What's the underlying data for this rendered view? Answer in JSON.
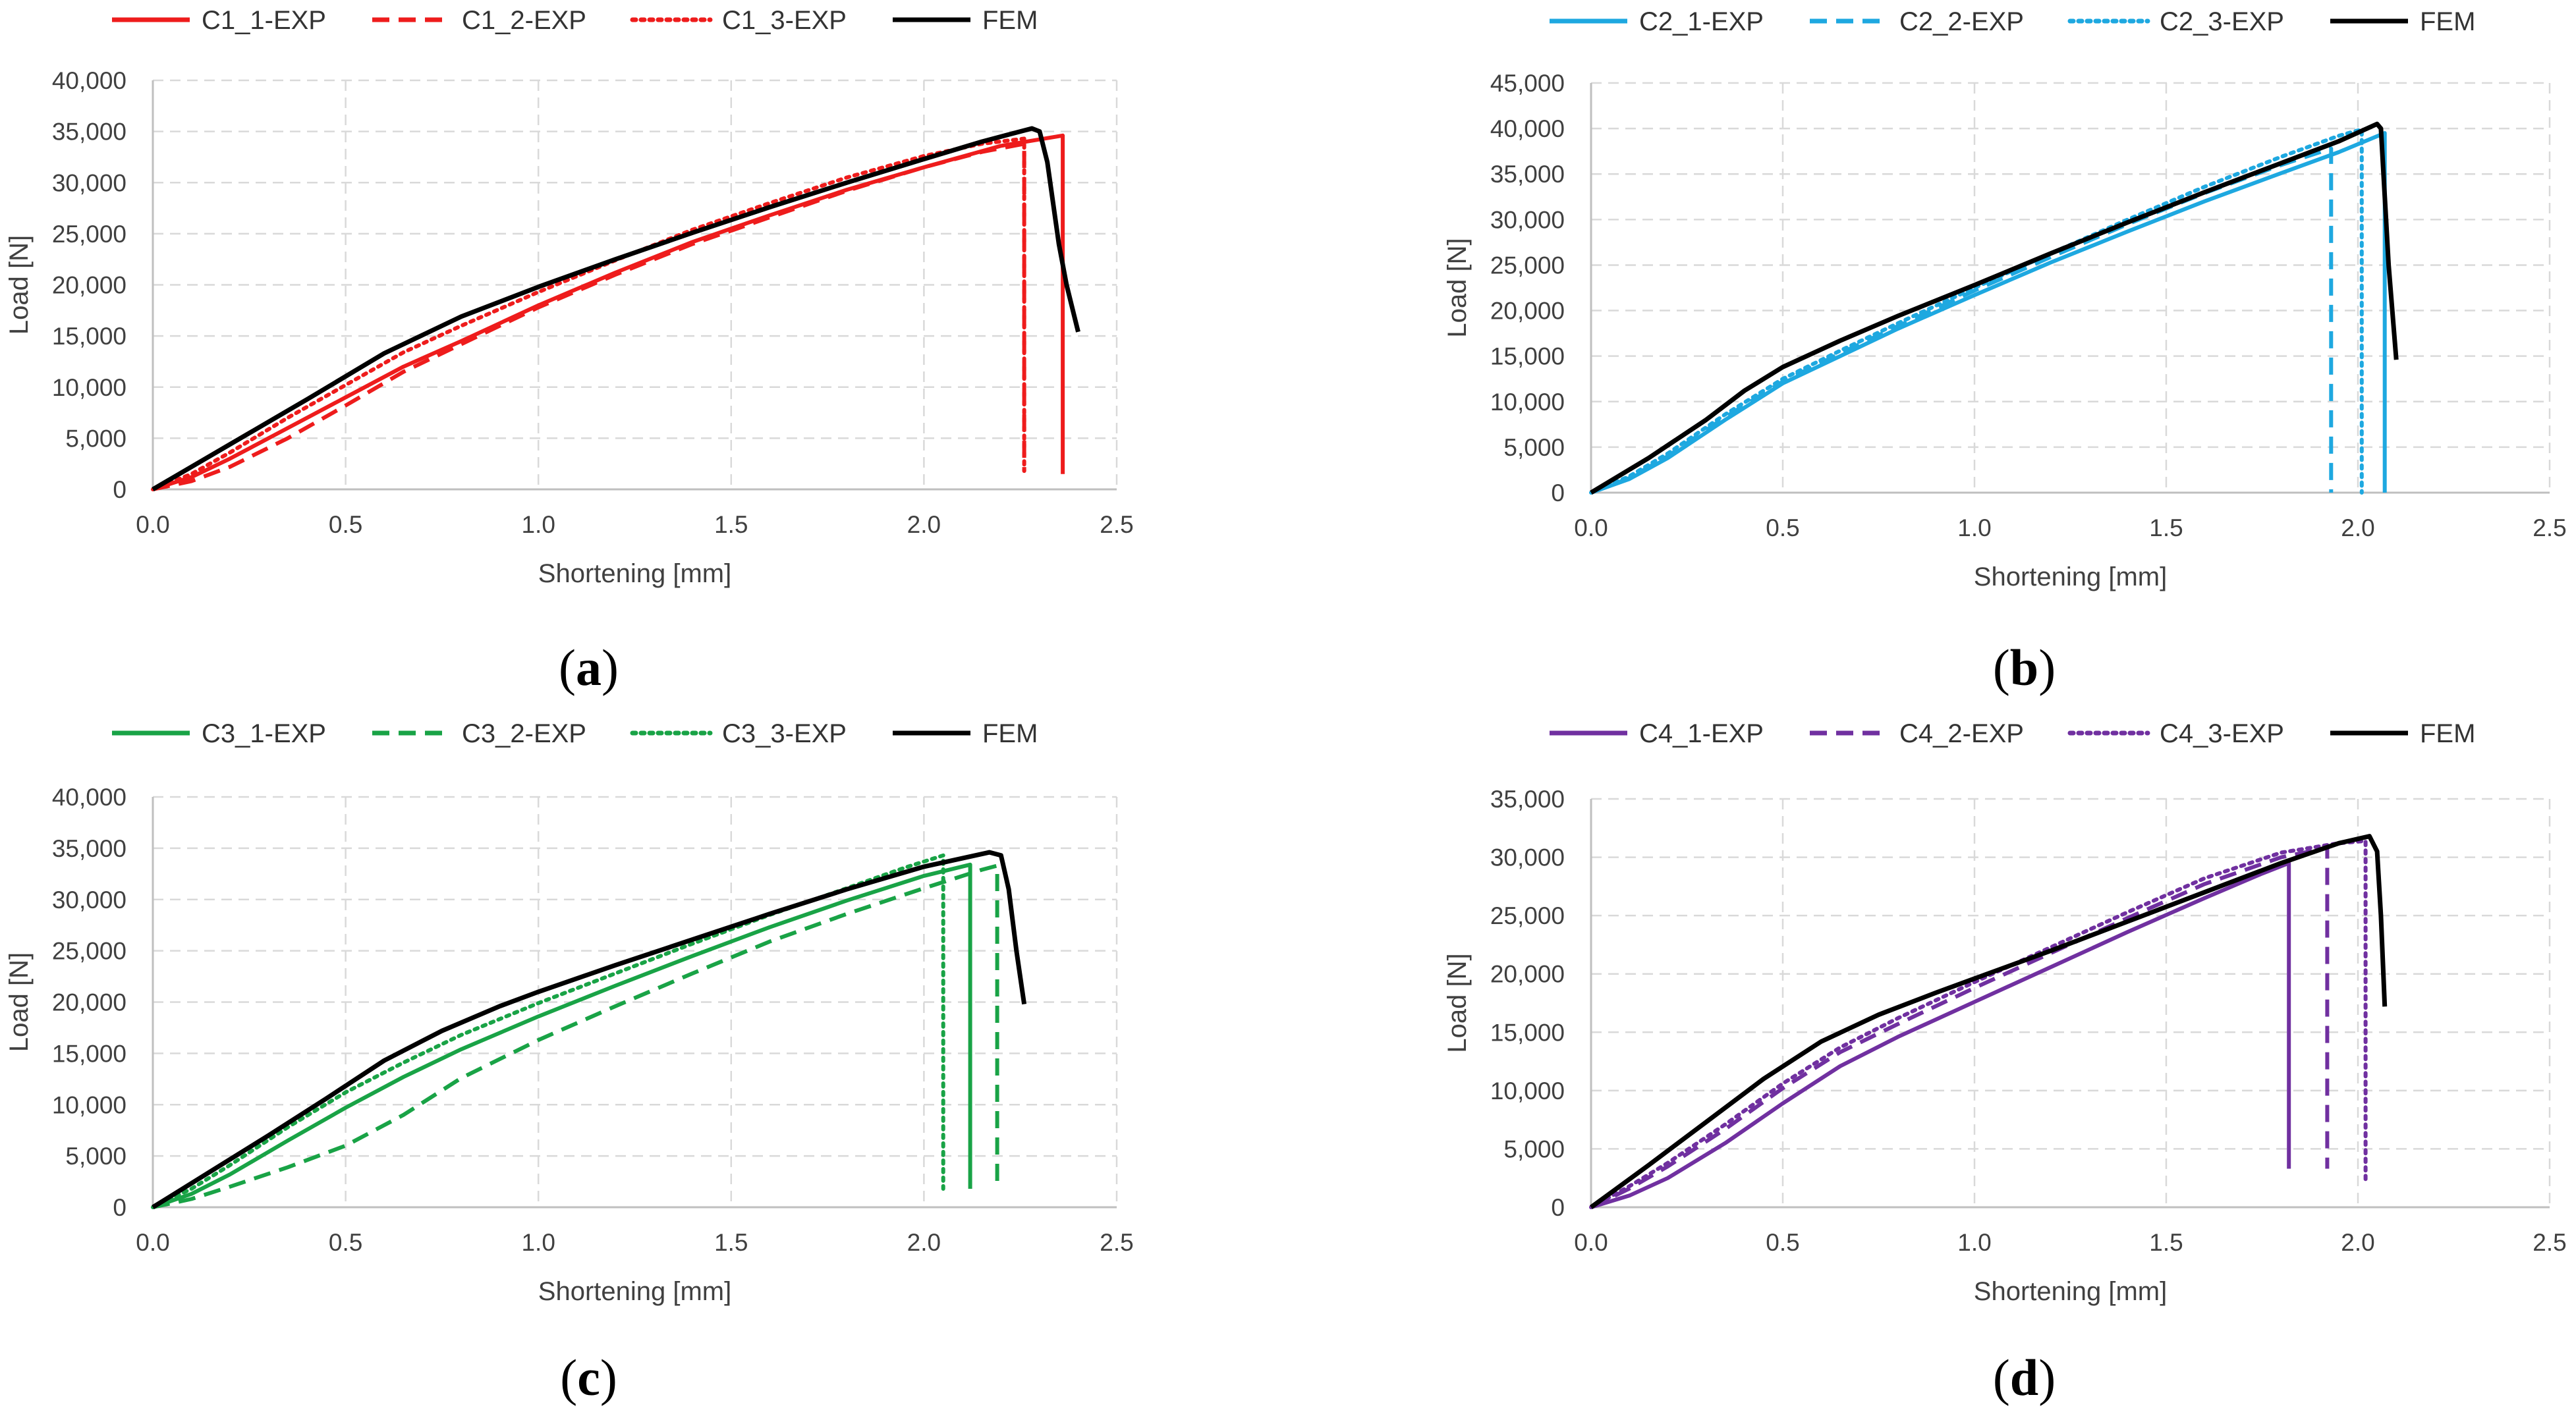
{
  "chart_data": [
    {
      "type": "line",
      "caption": "(a)",
      "caption_letter": "a",
      "xlabel": "Shortening [mm]",
      "ylabel": "Load [N]",
      "xlim": [
        0,
        2.5
      ],
      "ylim": [
        0,
        40000
      ],
      "xticks": [
        0,
        0.5,
        1,
        1.5,
        2,
        2.5
      ],
      "xtick_labels": [
        "0.0",
        "0.5",
        "1.0",
        "1.5",
        "2.0",
        "2.5"
      ],
      "yticks": [
        0,
        5000,
        10000,
        15000,
        20000,
        25000,
        30000,
        35000,
        40000
      ],
      "ytick_labels": [
        "0",
        "5,000",
        "10,000",
        "15,000",
        "20,000",
        "25,000",
        "30,000",
        "35,000",
        "40,000"
      ],
      "grid": true,
      "legend_position": "top",
      "series": [
        {
          "name": "C1_1-EXP",
          "color": "#ee1c1c",
          "dash": "solid",
          "x": [
            0,
            0.1,
            0.2,
            0.35,
            0.5,
            0.65,
            0.8,
            1.0,
            1.2,
            1.4,
            1.6,
            1.8,
            2.0,
            2.2,
            2.36,
            2.36
          ],
          "y": [
            0,
            1200,
            3000,
            6000,
            9000,
            12000,
            14500,
            18000,
            21200,
            24200,
            26800,
            29300,
            31500,
            33600,
            34600,
            1500
          ]
        },
        {
          "name": "C1_2-EXP",
          "color": "#ee1c1c",
          "dash": "dashed",
          "x": [
            0,
            0.1,
            0.2,
            0.35,
            0.5,
            0.65,
            0.8,
            1.0,
            1.2,
            1.4,
            1.6,
            1.8,
            2.0,
            2.15,
            2.26,
            2.26
          ],
          "y": [
            0,
            800,
            2200,
            5000,
            8200,
            11500,
            14200,
            17800,
            21000,
            24000,
            26600,
            29200,
            31500,
            33000,
            33800,
            1800
          ]
        },
        {
          "name": "C1_3-EXP",
          "color": "#ee1c1c",
          "dash": "dotted",
          "x": [
            0,
            0.1,
            0.2,
            0.35,
            0.5,
            0.65,
            0.8,
            1.0,
            1.2,
            1.4,
            1.6,
            1.8,
            2.0,
            2.15,
            2.26,
            2.26
          ],
          "y": [
            0,
            1500,
            3600,
            7000,
            10200,
            13400,
            16000,
            19300,
            22400,
            25400,
            28000,
            30500,
            32600,
            33800,
            34300,
            1800
          ]
        },
        {
          "name": "FEM",
          "color": "#000000",
          "dash": "solid",
          "x": [
            0,
            0.2,
            0.4,
            0.6,
            0.8,
            1.0,
            1.2,
            1.4,
            1.6,
            1.8,
            2.0,
            2.15,
            2.28,
            2.3,
            2.32,
            2.35,
            2.37,
            2.4
          ],
          "y": [
            0,
            4400,
            8800,
            13300,
            16900,
            19800,
            22500,
            25100,
            27600,
            30000,
            32300,
            34000,
            35300,
            35000,
            32000,
            24000,
            20000,
            15400
          ]
        }
      ]
    },
    {
      "type": "line",
      "caption": "(b)",
      "caption_letter": "b",
      "xlabel": "Shortening [mm]",
      "ylabel": "Load [N]",
      "xlim": [
        0,
        2.5
      ],
      "ylim": [
        0,
        45000
      ],
      "xticks": [
        0,
        0.5,
        1,
        1.5,
        2,
        2.5
      ],
      "xtick_labels": [
        "0.0",
        "0.5",
        "1.0",
        "1.5",
        "2.0",
        "2.5"
      ],
      "yticks": [
        0,
        5000,
        10000,
        15000,
        20000,
        25000,
        30000,
        35000,
        40000,
        45000
      ],
      "ytick_labels": [
        "0",
        "5,000",
        "10,000",
        "15,000",
        "20,000",
        "25,000",
        "30,000",
        "35,000",
        "40,000",
        "45,000"
      ],
      "grid": true,
      "legend_position": "top",
      "series": [
        {
          "name": "C2_1-EXP",
          "color": "#1ea8e0",
          "dash": "solid",
          "x": [
            0,
            0.1,
            0.2,
            0.35,
            0.5,
            0.65,
            0.8,
            1.0,
            1.2,
            1.4,
            1.6,
            1.8,
            1.95,
            2.07,
            2.07
          ],
          "y": [
            0,
            1500,
            3800,
            8000,
            12000,
            15000,
            18000,
            21700,
            25300,
            28700,
            32000,
            35100,
            37400,
            39500,
            0
          ]
        },
        {
          "name": "C2_2-EXP",
          "color": "#1ea8e0",
          "dash": "dashed",
          "x": [
            0,
            0.1,
            0.2,
            0.35,
            0.5,
            0.65,
            0.8,
            1.0,
            1.2,
            1.4,
            1.6,
            1.8,
            1.93,
            1.93
          ],
          "y": [
            0,
            1600,
            4000,
            8300,
            12200,
            15300,
            18300,
            22200,
            25900,
            29500,
            32900,
            36000,
            37800,
            0
          ]
        },
        {
          "name": "C2_3-EXP",
          "color": "#1ea8e0",
          "dash": "dotted",
          "x": [
            0,
            0.1,
            0.2,
            0.35,
            0.5,
            0.65,
            0.8,
            1.0,
            1.2,
            1.4,
            1.6,
            1.8,
            1.95,
            2.01,
            2.01
          ],
          "y": [
            0,
            1800,
            4300,
            8600,
            12500,
            15600,
            18600,
            22500,
            26300,
            30000,
            33600,
            36900,
            39200,
            39900,
            0
          ]
        },
        {
          "name": "FEM",
          "color": "#000000",
          "dash": "solid",
          "x": [
            0,
            0.15,
            0.3,
            0.4,
            0.5,
            0.65,
            0.8,
            1.0,
            1.2,
            1.4,
            1.6,
            1.8,
            1.95,
            2.05,
            2.06,
            2.08,
            2.1
          ],
          "y": [
            0,
            3800,
            8000,
            11200,
            13800,
            16700,
            19400,
            22800,
            26300,
            29700,
            33000,
            36200,
            38600,
            40500,
            40000,
            25000,
            14600
          ]
        }
      ]
    },
    {
      "type": "line",
      "caption": "(c)",
      "caption_letter": "c",
      "xlabel": "Shortening [mm]",
      "ylabel": "Load [N]",
      "xlim": [
        0,
        2.5
      ],
      "ylim": [
        0,
        40000
      ],
      "xticks": [
        0,
        0.5,
        1,
        1.5,
        2,
        2.5
      ],
      "xtick_labels": [
        "0.0",
        "0.5",
        "1.0",
        "1.5",
        "2.0",
        "2.5"
      ],
      "yticks": [
        0,
        5000,
        10000,
        15000,
        20000,
        25000,
        30000,
        35000,
        40000
      ],
      "ytick_labels": [
        "0",
        "5,000",
        "10,000",
        "15,000",
        "20,000",
        "25,000",
        "30,000",
        "35,000",
        "40,000"
      ],
      "grid": true,
      "legend_position": "top",
      "series": [
        {
          "name": "C3_1-EXP",
          "color": "#19a346",
          "dash": "solid",
          "x": [
            0,
            0.1,
            0.2,
            0.35,
            0.5,
            0.65,
            0.8,
            1.0,
            1.2,
            1.4,
            1.6,
            1.8,
            2.0,
            2.12,
            2.12
          ],
          "y": [
            0,
            1300,
            3200,
            6500,
            9700,
            12700,
            15400,
            18600,
            21600,
            24500,
            27300,
            29900,
            32300,
            33400,
            1800
          ]
        },
        {
          "name": "C3_2-EXP",
          "color": "#19a346",
          "dash": "dashed",
          "x": [
            0,
            0.1,
            0.2,
            0.35,
            0.5,
            0.65,
            0.8,
            1.0,
            1.2,
            1.4,
            1.6,
            1.8,
            2.0,
            2.15,
            2.19,
            2.19
          ],
          "y": [
            0,
            800,
            2000,
            3900,
            6000,
            9000,
            12600,
            16300,
            19600,
            22800,
            25900,
            28600,
            31100,
            32900,
            33300,
            1800
          ]
        },
        {
          "name": "C3_3-EXP",
          "color": "#19a346",
          "dash": "dotted",
          "x": [
            0,
            0.1,
            0.2,
            0.35,
            0.5,
            0.65,
            0.8,
            1.0,
            1.2,
            1.4,
            1.6,
            1.8,
            1.95,
            2.05,
            2.05
          ],
          "y": [
            0,
            1800,
            4100,
            7800,
            11200,
            14100,
            16800,
            19900,
            22800,
            25700,
            28500,
            31100,
            33100,
            34300,
            1800
          ]
        },
        {
          "name": "FEM",
          "color": "#000000",
          "dash": "solid",
          "x": [
            0,
            0.15,
            0.3,
            0.45,
            0.6,
            0.75,
            0.9,
            1.0,
            1.2,
            1.4,
            1.6,
            1.8,
            2.0,
            2.17,
            2.2,
            2.22,
            2.24,
            2.26
          ],
          "y": [
            0,
            3500,
            7000,
            10600,
            14300,
            17200,
            19600,
            21000,
            23600,
            26100,
            28600,
            31000,
            33200,
            34600,
            34300,
            31000,
            25000,
            19800
          ]
        }
      ]
    },
    {
      "type": "line",
      "caption": "(d)",
      "caption_letter": "d",
      "xlabel": "Shortening [mm]",
      "ylabel": "Load [N]",
      "xlim": [
        0,
        2.5
      ],
      "ylim": [
        0,
        35000
      ],
      "xticks": [
        0,
        0.5,
        1,
        1.5,
        2,
        2.5
      ],
      "xtick_labels": [
        "0.0",
        "0.5",
        "1.0",
        "1.5",
        "2.0",
        "2.5"
      ],
      "yticks": [
        0,
        5000,
        10000,
        15000,
        20000,
        25000,
        30000,
        35000
      ],
      "ytick_labels": [
        "0",
        "5,000",
        "10,000",
        "15,000",
        "20,000",
        "25,000",
        "30,000",
        "35,000"
      ],
      "grid": true,
      "legend_position": "top",
      "series": [
        {
          "name": "C4_1-EXP",
          "color": "#7030a0",
          "dash": "solid",
          "x": [
            0,
            0.1,
            0.2,
            0.35,
            0.5,
            0.65,
            0.8,
            1.0,
            1.2,
            1.4,
            1.6,
            1.75,
            1.82,
            1.82
          ],
          "y": [
            0,
            1000,
            2500,
            5500,
            8900,
            12100,
            14600,
            17600,
            20600,
            23600,
            26500,
            28600,
            29500,
            3300
          ]
        },
        {
          "name": "C4_2-EXP",
          "color": "#7030a0",
          "dash": "dashed",
          "x": [
            0,
            0.1,
            0.2,
            0.35,
            0.5,
            0.65,
            0.8,
            1.0,
            1.2,
            1.4,
            1.6,
            1.8,
            1.92,
            1.92
          ],
          "y": [
            0,
            1600,
            3500,
            6700,
            10200,
            13300,
            15700,
            18800,
            21800,
            24800,
            27700,
            30000,
            30800,
            3300
          ]
        },
        {
          "name": "C4_3-EXP",
          "color": "#7030a0",
          "dash": "dotted",
          "x": [
            0,
            0.1,
            0.2,
            0.35,
            0.5,
            0.65,
            0.8,
            1.0,
            1.2,
            1.4,
            1.6,
            1.8,
            1.95,
            2.02,
            2.02
          ],
          "y": [
            0,
            1800,
            3800,
            7100,
            10600,
            13700,
            16200,
            19300,
            22300,
            25300,
            28200,
            30400,
            31200,
            31400,
            2000
          ]
        },
        {
          "name": "FEM",
          "color": "#000000",
          "dash": "solid",
          "x": [
            0,
            0.15,
            0.3,
            0.45,
            0.6,
            0.75,
            0.9,
            1.0,
            1.2,
            1.4,
            1.6,
            1.8,
            1.95,
            2.03,
            2.05,
            2.06,
            2.07
          ],
          "y": [
            0,
            3600,
            7300,
            11000,
            14200,
            16500,
            18400,
            19600,
            22000,
            24500,
            27000,
            29500,
            31200,
            31800,
            30500,
            25000,
            17200
          ]
        }
      ]
    }
  ]
}
